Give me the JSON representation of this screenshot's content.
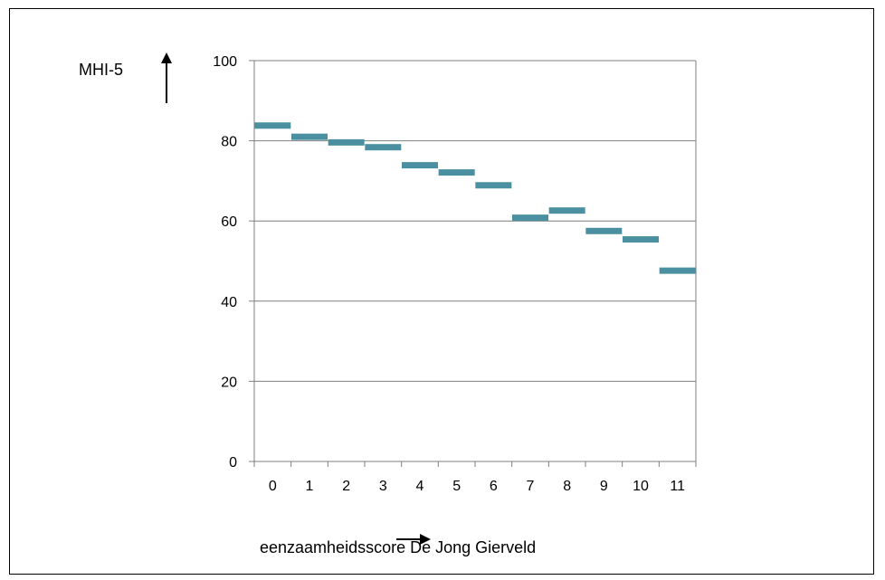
{
  "chart_data": {
    "type": "bar",
    "title": "",
    "ylabel": "MHI-5",
    "xlabel": "eenzaamheidsscore De Jong Gierveld",
    "categories": [
      "0",
      "1",
      "2",
      "3",
      "4",
      "5",
      "6",
      "7",
      "8",
      "9",
      "10",
      "11"
    ],
    "values": [
      83.8,
      81.0,
      79.6,
      78.4,
      73.9,
      72.1,
      68.9,
      60.8,
      62.6,
      57.5,
      55.4,
      47.6
    ],
    "ylim": [
      0,
      100
    ],
    "yticks": [
      "0",
      "20",
      "40",
      "60",
      "80",
      "100"
    ],
    "grid": true,
    "legend": "none",
    "colors": {
      "marker": "#4a90a0",
      "grid": "#7f7f7f",
      "axis": "#7f7f7f",
      "arrow": "#000000"
    }
  }
}
